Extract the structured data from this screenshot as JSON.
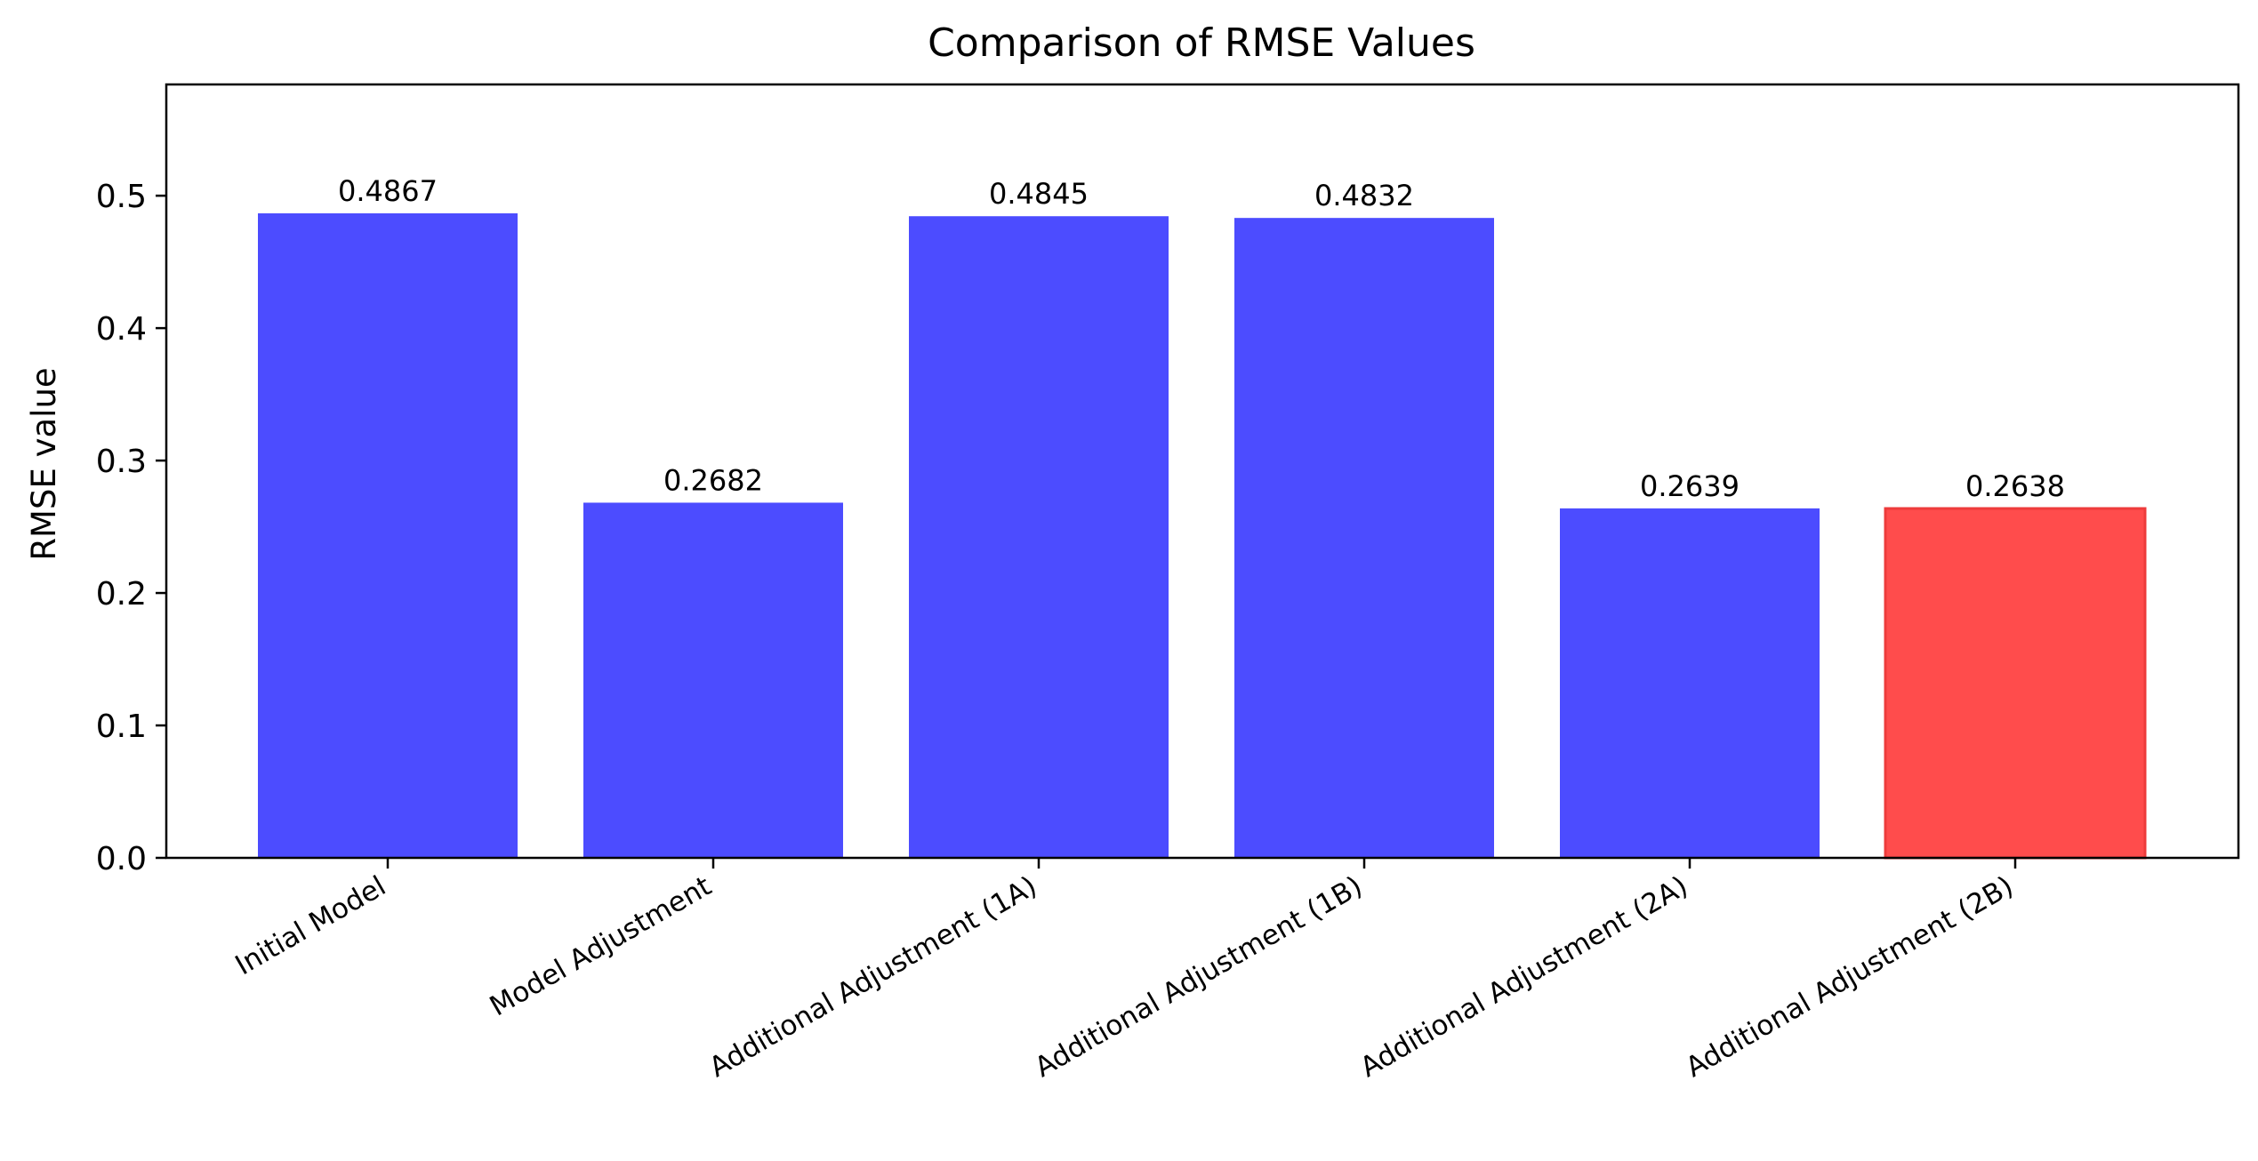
{
  "chart_data": {
    "type": "bar",
    "title": "Comparison of RMSE Values",
    "xlabel": "",
    "ylabel": "RMSE value",
    "categories": [
      "Initial Model",
      "Model Adjustment",
      "Additional Adjustment (1A)",
      "Additional Adjustment (1B)",
      "Additional Adjustment (2A)",
      "Additional Adjustment (2B)"
    ],
    "values": [
      0.4867,
      0.2682,
      0.4845,
      0.4832,
      0.2639,
      0.2638
    ],
    "value_labels": [
      "0.4867",
      "0.2682",
      "0.4845",
      "0.4832",
      "0.2639",
      "0.2638"
    ],
    "bar_colors": [
      "#4c4cff",
      "#4c4cff",
      "#4c4cff",
      "#4c4cff",
      "#4c4cff",
      "#ff4c4c"
    ],
    "highlight_edge_color": "#ee3b3b",
    "ylim": [
      0,
      0.584
    ],
    "yticks": [
      0.0,
      0.1,
      0.2,
      0.3,
      0.4,
      0.5
    ],
    "ytick_labels": [
      "0.0",
      "0.1",
      "0.2",
      "0.3",
      "0.4",
      "0.5"
    ],
    "grid": false,
    "legend": "none"
  }
}
